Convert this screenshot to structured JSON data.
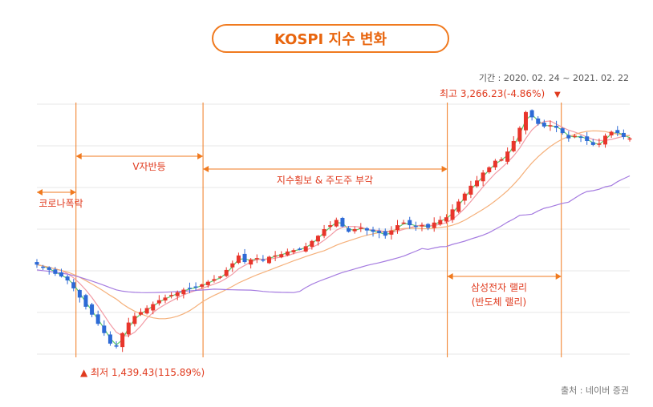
{
  "title": "KOSPI 지수 변화",
  "period": "기간 : 2020. 02. 24 ~ 2021. 02. 22",
  "source": "출처 : 네이버 증권",
  "annotations": {
    "high": "최고 3,266.23(-4.86%)",
    "low": "▲ 최저 1,439.43(115.89%)",
    "phase_crash": "코로나폭락",
    "phase_v": "V자반등",
    "phase_sideways": "지수횡보 & 주도주 부각",
    "phase_samsung_1": "삼성전자 랠리",
    "phase_samsung_2": "(반도체 랠리)"
  },
  "colors": {
    "accent": "#f07a1f",
    "annotation_red": "#e03a1e",
    "candle_up": "#e8352b",
    "candle_down": "#2d6ad6",
    "ma5": "#5dc96b",
    "ma20": "#f29aa4",
    "ma60": "#f5b07a",
    "ma120": "#a57be0",
    "grid": "#e7e7e7"
  },
  "chart_data": {
    "type": "candlestick",
    "x_range": [
      "2020-02-24",
      "2021-02-22"
    ],
    "y_range": [
      1400,
      3300
    ],
    "low": {
      "date": "2020-03-19",
      "value": 1439.43,
      "change_pct": 115.89
    },
    "high": {
      "date": "2021-01-11",
      "value": 3266.23,
      "change_pct": -4.86
    },
    "phases": [
      {
        "label": "코로나폭락",
        "start": "2020-02-24",
        "end": "2020-03-19"
      },
      {
        "label": "V자반등",
        "start": "2020-03-19",
        "end": "2020-06-05"
      },
      {
        "label": "지수횡보 & 주도주 부각",
        "start": "2020-06-05",
        "end": "2020-11-02"
      },
      {
        "label": "삼성전자 랠리 (반도체 랠리)",
        "start": "2020-11-02",
        "end": "2021-01-11"
      }
    ],
    "closes": [
      2080,
      2060,
      2040,
      2010,
      1990,
      1960,
      1900,
      1830,
      1760,
      1700,
      1630,
      1560,
      1480,
      1460,
      1560,
      1640,
      1690,
      1720,
      1750,
      1780,
      1810,
      1830,
      1850,
      1870,
      1890,
      1900,
      1910,
      1930,
      1950,
      1970,
      1990,
      2040,
      2090,
      2150,
      2100,
      2120,
      2130,
      2110,
      2140,
      2150,
      2160,
      2180,
      2190,
      2200,
      2220,
      2260,
      2300,
      2350,
      2380,
      2420,
      2370,
      2330,
      2350,
      2360,
      2340,
      2330,
      2320,
      2300,
      2340,
      2380,
      2400,
      2380,
      2370,
      2380,
      2360,
      2400,
      2420,
      2440,
      2500,
      2560,
      2620,
      2680,
      2720,
      2780,
      2820,
      2870,
      2880,
      2940,
      3020,
      3120,
      3240,
      3200,
      3150,
      3130,
      3140,
      3120,
      3080,
      3040,
      3060,
      3050,
      3020,
      2990,
      3000,
      3060,
      3090,
      3080,
      3050,
      3040
    ]
  }
}
